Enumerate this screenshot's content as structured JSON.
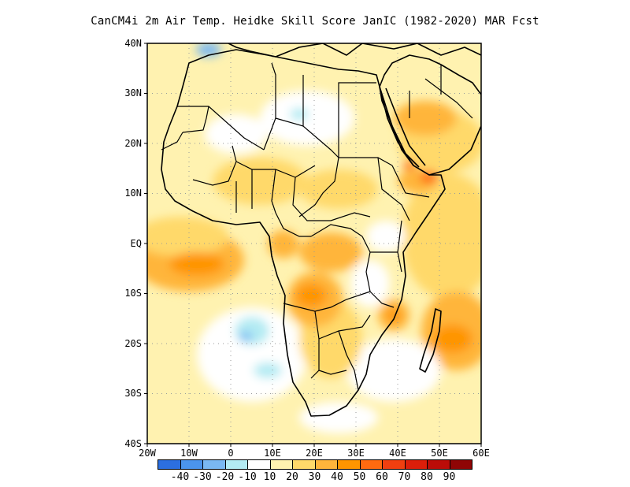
{
  "title": "CanCM4i  2m Air Temp. Heidke Skill Score JanIC (1982-2020) MAR Fcst",
  "lat_labels": [
    "40N",
    "30N",
    "20N",
    "10N",
    "EQ",
    "10S",
    "20S",
    "30S",
    "40S"
  ],
  "lon_labels": [
    "20W",
    "10W",
    "0",
    "10E",
    "20E",
    "30E",
    "40E",
    "50E",
    "60E"
  ],
  "colorbar": {
    "colors": [
      "#2c6fe0",
      "#4b94ec",
      "#7ab8f2",
      "#b3ebf3",
      "#ffffff",
      "#fff2b0",
      "#ffd96a",
      "#ffb53b",
      "#ff9500",
      "#ff6a10",
      "#f03f10",
      "#dc1e0a",
      "#bb0c08",
      "#8f0505"
    ],
    "labels": [
      "-40",
      "-30",
      "-20",
      "-10",
      "10",
      "20",
      "30",
      "40",
      "50",
      "60",
      "70",
      "80",
      "90"
    ]
  },
  "map": {
    "domain": {
      "lon": [
        -20,
        60
      ],
      "lat": [
        -40,
        40
      ]
    },
    "grid": "dotted, every 10 degrees"
  }
}
